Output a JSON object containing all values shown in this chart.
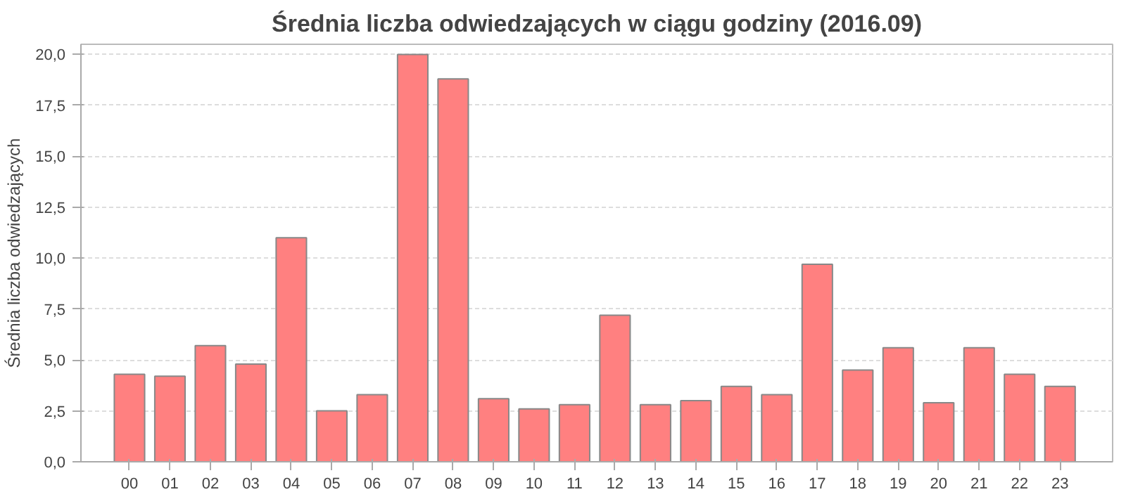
{
  "chart_data": {
    "type": "bar",
    "title": "Średnia liczba odwiedzających w ciągu godziny (2016.09)",
    "ylabel": "Średnia liczba odwiedzających",
    "categories": [
      "00",
      "01",
      "02",
      "03",
      "04",
      "05",
      "06",
      "07",
      "08",
      "09",
      "10",
      "11",
      "12",
      "13",
      "14",
      "15",
      "16",
      "17",
      "18",
      "19",
      "20",
      "21",
      "22",
      "23"
    ],
    "values": [
      4.3,
      4.2,
      5.7,
      4.8,
      11.0,
      2.5,
      3.3,
      20.0,
      18.8,
      3.1,
      2.6,
      2.8,
      7.2,
      2.8,
      3.0,
      3.7,
      3.3,
      9.7,
      4.5,
      5.6,
      2.9,
      5.6,
      4.3,
      3.7
    ],
    "color": "#ff8080",
    "ylim": [
      0,
      20.5
    ],
    "yticks": [
      {
        "value": 0,
        "label": "0,0"
      },
      {
        "value": 2.5,
        "label": "2,5"
      },
      {
        "value": 5,
        "label": "5,0"
      },
      {
        "value": 7.5,
        "label": "7,5"
      },
      {
        "value": 10,
        "label": "10,0"
      },
      {
        "value": 12.5,
        "label": "12,5"
      },
      {
        "value": 15,
        "label": "15,0"
      },
      {
        "value": 17.5,
        "label": "17,5"
      },
      {
        "value": 20,
        "label": "20,0"
      }
    ],
    "grid": "y"
  }
}
